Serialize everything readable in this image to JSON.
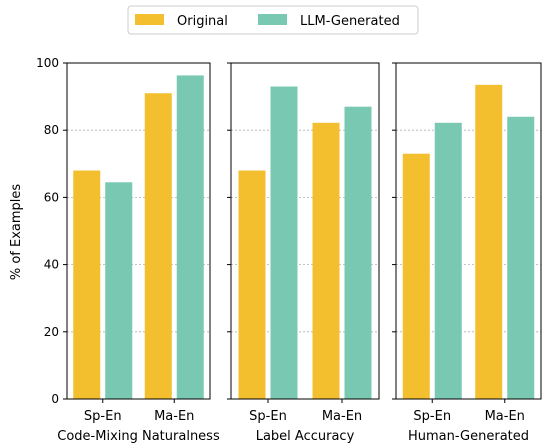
{
  "chart_data": {
    "type": "bar",
    "ylabel": "% of Examples",
    "ylim": [
      0,
      100
    ],
    "yticks": [
      0,
      20,
      40,
      60,
      80,
      100
    ],
    "grid": true,
    "legend_placement": "top-center",
    "series": [
      {
        "name": "Original",
        "color": "#f4bf2e"
      },
      {
        "name": "LLM-Generated",
        "color": "#78c8b2"
      }
    ],
    "panels": [
      {
        "label": "Code-Mixing Naturalness",
        "categories": [
          "Sp-En",
          "Ma-En"
        ],
        "values": {
          "Original": [
            68,
            91
          ],
          "LLM-Generated": [
            64.5,
            96.3
          ]
        }
      },
      {
        "label": "Label Accuracy",
        "categories": [
          "Sp-En",
          "Ma-En"
        ],
        "values": {
          "Original": [
            68,
            82.2
          ],
          "LLM-Generated": [
            93,
            87
          ]
        }
      },
      {
        "label": "Human-Generated",
        "categories": [
          "Sp-En",
          "Ma-En"
        ],
        "values": {
          "Original": [
            73,
            93.5
          ],
          "LLM-Generated": [
            82.2,
            84
          ]
        }
      }
    ]
  }
}
